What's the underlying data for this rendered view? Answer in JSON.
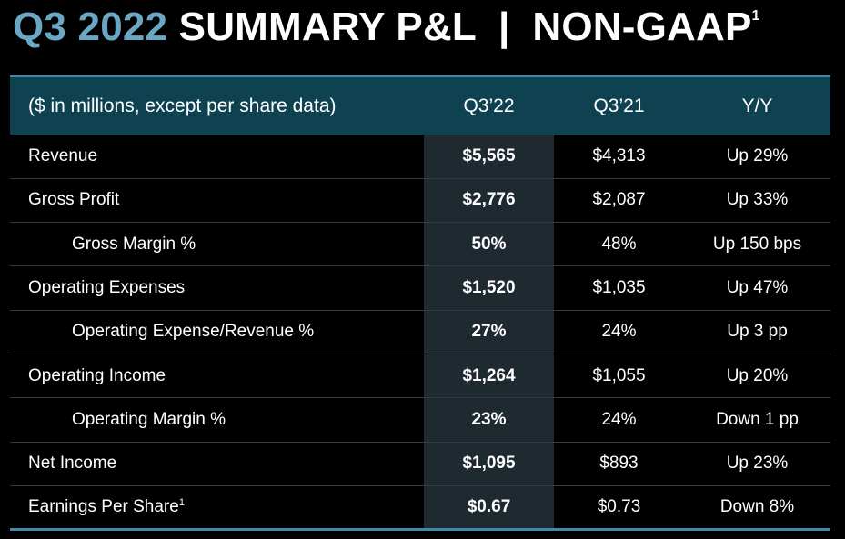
{
  "title": {
    "accent": "Q3 2022",
    "main": "SUMMARY P&L  |  NON-GAAP",
    "footnote_mark": "1"
  },
  "colors": {
    "background": "#000000",
    "accent": "#6aa7c4",
    "header_bg": "#0e4251",
    "highlight_column_bg": "#1e2a2f",
    "rule": "#3f8aa6"
  },
  "table": {
    "headers": {
      "label": "($ in millions, except per share data)",
      "current": "Q3’22",
      "prior": "Q3’21",
      "change": "Y/Y"
    },
    "rows": [
      {
        "label": "Revenue",
        "current": "$5,565",
        "prior": "$4,313",
        "change": "Up 29%"
      },
      {
        "label": "Gross Profit",
        "current": "$2,776",
        "prior": "$2,087",
        "change": "Up 33%"
      },
      {
        "label": "Gross Margin %",
        "current": "50%",
        "prior": "48%",
        "change": "Up 150 bps"
      },
      {
        "label": "Operating Expenses",
        "current": "$1,520",
        "prior": "$1,035",
        "change": "Up 47%"
      },
      {
        "label": "Operating Expense/Revenue %",
        "current": "27%",
        "prior": "24%",
        "change": "Up 3 pp"
      },
      {
        "label": "Operating Income",
        "current": "$1,264",
        "prior": "$1,055",
        "change": "Up 20%"
      },
      {
        "label": "Operating Margin %",
        "current": "23%",
        "prior": "24%",
        "change": "Down 1 pp"
      },
      {
        "label": "Net Income",
        "current": "$1,095",
        "prior": "$893",
        "change": "Up 23%"
      },
      {
        "label": "Earnings Per Share",
        "label_footnote": "1",
        "current": "$0.67",
        "prior": "$0.73",
        "change": "Down 8%"
      }
    ]
  }
}
